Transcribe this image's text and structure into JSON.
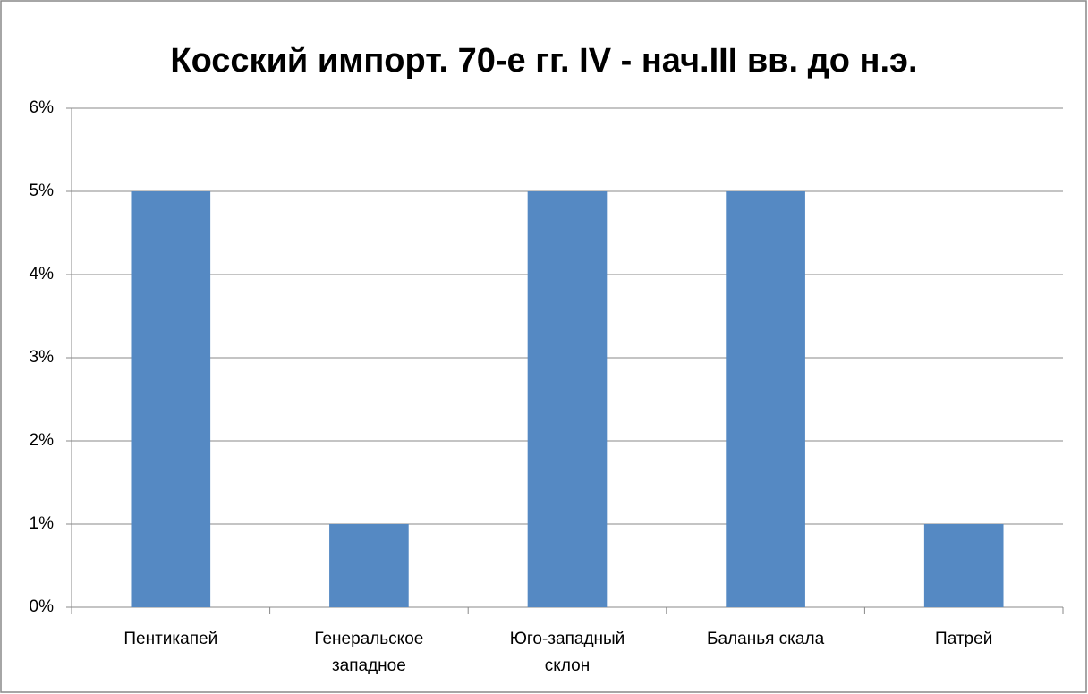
{
  "chart_data": {
    "type": "bar",
    "title": "Косский импорт. 70-е гг. IV - нач.III вв. до н.э.",
    "categories": [
      "Пентикапей",
      "Генеральское западное",
      "Юго-западный склон",
      "Баланья скала",
      "Патрей"
    ],
    "values": [
      5,
      1,
      5,
      5,
      1
    ],
    "color": "#5589c3",
    "ylim": [
      0,
      6
    ],
    "yticks": [
      {
        "value": 0,
        "label": "0%"
      },
      {
        "value": 1,
        "label": "1%"
      },
      {
        "value": 2,
        "label": "2%"
      },
      {
        "value": 3,
        "label": "3%"
      },
      {
        "value": 4,
        "label": "4%"
      },
      {
        "value": 5,
        "label": "5%"
      },
      {
        "value": 6,
        "label": "6%"
      }
    ],
    "grid": true
  }
}
